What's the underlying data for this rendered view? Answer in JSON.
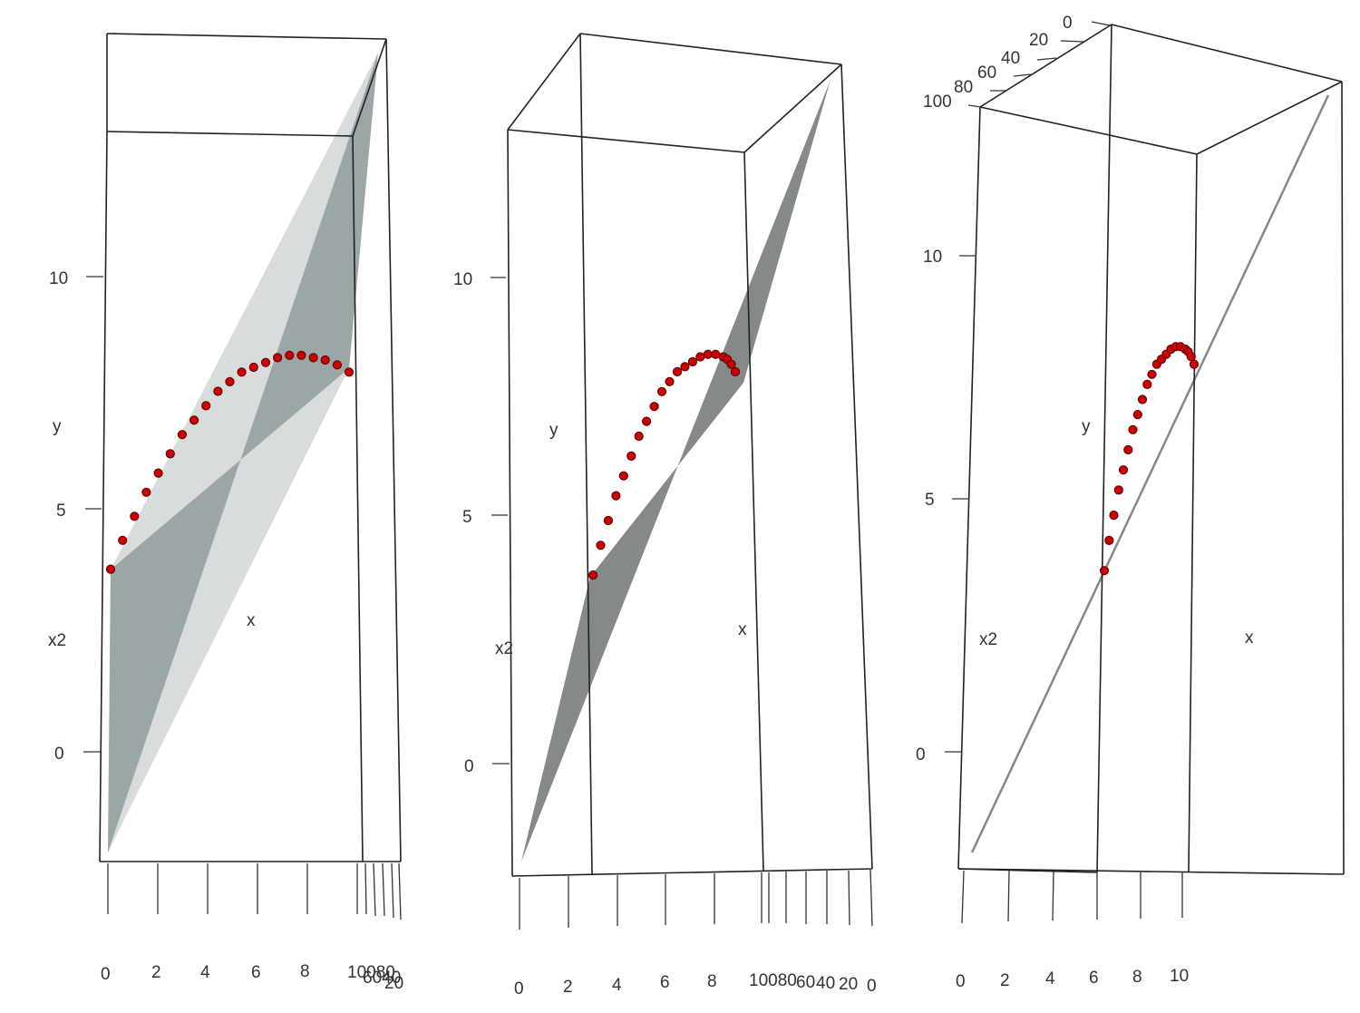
{
  "chart_data": [
    {
      "type": "scatter",
      "view": "3d-perspective",
      "axes": {
        "y_label": "y",
        "x_label": "x",
        "x2_label": "x2"
      },
      "y_ticks": [
        "0",
        "5",
        "10"
      ],
      "x_ticks": [
        "0",
        "2",
        "4",
        "6",
        "8",
        "10"
      ],
      "x2_ticks": [
        "100",
        "80",
        "60",
        "40",
        "20"
      ],
      "x2_ticks_overlap_text": "10080",
      "x2_ticks_overlap_text_b": "6040",
      "x2_ticks_overlap_text_c": "20",
      "surface": {
        "type": "regression-plane",
        "color": "#8f9a9c"
      },
      "points_color": "#cc0000",
      "x": [
        0,
        0.5,
        1,
        1.5,
        2,
        2.5,
        3,
        3.5,
        4,
        4.5,
        5,
        5.5,
        6,
        6.5,
        7,
        7.5,
        8,
        8.5,
        9,
        9.5,
        10
      ],
      "y": [
        3.8,
        4.4,
        4.9,
        5.4,
        5.8,
        6.2,
        6.6,
        6.9,
        7.2,
        7.5,
        7.7,
        7.9,
        8.0,
        8.1,
        8.2,
        8.25,
        8.25,
        8.2,
        8.15,
        8.05,
        7.9
      ]
    },
    {
      "type": "scatter",
      "view": "3d-perspective",
      "axes": {
        "y_label": "y",
        "x_label": "x",
        "x2_label": "x2"
      },
      "y_ticks": [
        "0",
        "5",
        "10"
      ],
      "x_ticks": [
        "0",
        "2",
        "4",
        "6",
        "8",
        "10"
      ],
      "x2_ticks": [
        "100",
        "80",
        "60",
        "40",
        "20",
        "0"
      ],
      "x2_ticks_overlap_text": "10080",
      "surface": {
        "type": "regression-plane",
        "color": "#707474"
      },
      "points_color": "#cc0000"
    },
    {
      "type": "scatter",
      "view": "3d-perspective",
      "axes": {
        "y_label": "y",
        "x_label": "x",
        "x2_label": "x2"
      },
      "y_ticks": [
        "0",
        "5",
        "10"
      ],
      "x_ticks": [
        "0",
        "2",
        "4",
        "6",
        "8",
        "10"
      ],
      "x2_ticks": [
        "0",
        "20",
        "40",
        "60",
        "80",
        "100"
      ],
      "surface": {
        "type": "regression-plane-edge-on",
        "color": "#888888"
      },
      "points_color": "#cc0000"
    }
  ]
}
